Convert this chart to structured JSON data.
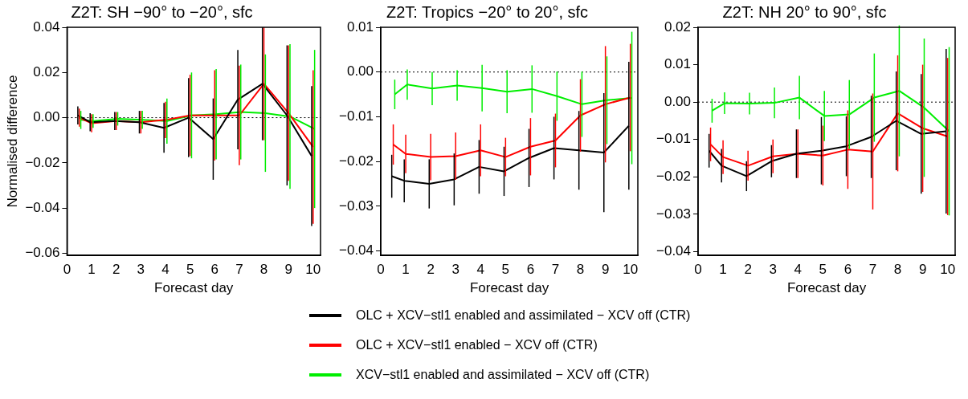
{
  "chart_data": [
    {
      "type": "line",
      "title": "Z2T: SH −90° to −20°, sfc",
      "xlabel": "Forecast day",
      "ylabel": "Normalised difference",
      "x": [
        0.5,
        1,
        2,
        3,
        4,
        5,
        6,
        7,
        8,
        9,
        10
      ],
      "xlim": [
        0,
        10.3
      ],
      "xticks": [
        0,
        1,
        2,
        3,
        4,
        5,
        6,
        7,
        8,
        9,
        10
      ],
      "ylim": [
        -0.061,
        0.04
      ],
      "yticks": [
        {
          "value": -0.06,
          "label": "−0.06"
        },
        {
          "value": -0.04,
          "label": "−0.04"
        },
        {
          "value": -0.02,
          "label": "−0.02"
        },
        {
          "value": 0,
          "label": "0.00"
        },
        {
          "value": 0.02,
          "label": "0.02"
        },
        {
          "value": 0.04,
          "label": "0.04"
        }
      ],
      "grid": false,
      "legend": "bottom",
      "marker": "none",
      "line_style": "solid",
      "ref_lines": [
        {
          "axis": "y",
          "value": 0,
          "color": "#000000",
          "line_style": "dotted"
        }
      ],
      "series": [
        {
          "name": "OLC + XCV−stl1 enabled and assimilated − XCV off (CTR)",
          "color": "#000000",
          "x": [
            0.44,
            0.94,
            1.94,
            2.94,
            3.94,
            4.94,
            5.94,
            6.94,
            7.94,
            8.94,
            9.94
          ],
          "values": [
            0.001,
            -0.002,
            -0.0015,
            -0.002,
            -0.0045,
            0,
            -0.0095,
            0.008,
            0.015,
            0.001,
            -0.017
          ],
          "errors": [
            0.004,
            0.004,
            0.004,
            0.005,
            0.011,
            0.0175,
            0.018,
            0.022,
            0.025,
            0.031,
            0.031
          ]
        },
        {
          "name": "OLC + XCV−stl1 enabled − XCV off (CTR)",
          "color": "#ff0000",
          "values": [
            0,
            -0.0025,
            -0.0015,
            -0.002,
            -0.001,
            0.001,
            0.001,
            0.001,
            0.015,
            0.002,
            -0.013
          ],
          "errors": [
            0.004,
            0.004,
            0.004,
            0.005,
            0.008,
            0.018,
            0.02,
            0.022,
            0.025,
            0.03,
            0.034
          ]
        },
        {
          "name": "XCV−stl1 enabled and assimilated − XCV off (CTR)",
          "color": "#00ee00",
          "x": [
            0.56,
            1.06,
            2.06,
            3.06,
            4.06,
            5.06,
            6.06,
            7.06,
            8.06,
            9.06,
            10.06
          ],
          "values": [
            -0.001,
            -0.0015,
            -0.0005,
            -0.001,
            -0.0015,
            0.001,
            0.0015,
            0.0025,
            0.002,
            0.0005,
            -0.005
          ],
          "errors": [
            0.004,
            0.003,
            0.003,
            0.004,
            0.01,
            0.019,
            0.02,
            0.021,
            0.026,
            0.032,
            0.035
          ]
        }
      ]
    },
    {
      "type": "line",
      "title": "Z2T: Tropics −20° to 20°, sfc",
      "xlabel": "Forecast day",
      "x": [
        0.5,
        1,
        2,
        3,
        4,
        5,
        6,
        7,
        8,
        9,
        10
      ],
      "xlim": [
        0,
        10.3
      ],
      "xticks": [
        0,
        1,
        2,
        3,
        4,
        5,
        6,
        7,
        8,
        9,
        10
      ],
      "ylim": [
        -0.041,
        0.01
      ],
      "yticks": [
        {
          "value": -0.04,
          "label": "−0.04"
        },
        {
          "value": -0.03,
          "label": "−0.03"
        },
        {
          "value": -0.02,
          "label": "−0.02"
        },
        {
          "value": -0.01,
          "label": "−0.01"
        },
        {
          "value": 0,
          "label": "0.00"
        },
        {
          "value": 0.01,
          "label": "0.01"
        }
      ],
      "grid": false,
      "marker": "none",
      "line_style": "solid",
      "ref_lines": [
        {
          "axis": "y",
          "value": 0,
          "color": "#000000",
          "line_style": "dotted"
        }
      ],
      "series": [
        {
          "color": "#000000",
          "x": [
            0.44,
            0.94,
            1.94,
            2.94,
            3.94,
            4.94,
            5.94,
            6.94,
            7.94,
            8.94,
            9.94
          ],
          "values": [
            -0.0233,
            -0.0243,
            -0.025,
            -0.024,
            -0.0212,
            -0.0222,
            -0.0192,
            -0.017,
            -0.0175,
            -0.018,
            -0.012
          ],
          "errors": [
            0.0048,
            0.0048,
            0.0055,
            0.0058,
            0.006,
            0.0055,
            0.0065,
            0.007,
            0.0088,
            0.0133,
            0.0143
          ]
        },
        {
          "color": "#ff0000",
          "values": [
            -0.0162,
            -0.0183,
            -0.019,
            -0.0188,
            -0.0175,
            -0.019,
            -0.0167,
            -0.0153,
            -0.0097,
            -0.0072,
            -0.0057
          ],
          "errors": [
            0.0045,
            0.0043,
            0.0052,
            0.0053,
            0.0058,
            0.0043,
            0.0064,
            0.006,
            0.0081,
            0.013,
            0.012
          ]
        },
        {
          "color": "#00ee00",
          "x": [
            0.56,
            1.06,
            2.06,
            3.06,
            4.06,
            5.06,
            6.06,
            7.06,
            8.06,
            9.06,
            10.06
          ],
          "values": [
            -0.005,
            -0.0028,
            -0.0037,
            -0.003,
            -0.0036,
            -0.0044,
            -0.0038,
            -0.0054,
            -0.0072,
            -0.0063,
            -0.0058
          ],
          "errors": [
            0.0033,
            0.0034,
            0.0037,
            0.0034,
            0.0052,
            0.0048,
            0.0053,
            0.0055,
            0.0073,
            0.0098,
            0.0148
          ]
        }
      ]
    },
    {
      "type": "line",
      "title": "Z2T: NH 20° to 90°, sfc",
      "xlabel": "Forecast day",
      "x": [
        0.5,
        1,
        2,
        3,
        4,
        5,
        6,
        7,
        8,
        9,
        10
      ],
      "xlim": [
        0,
        10.3
      ],
      "xticks": [
        0,
        1,
        2,
        3,
        4,
        5,
        6,
        7,
        8,
        9,
        10
      ],
      "ylim": [
        -0.041,
        0.02
      ],
      "yticks": [
        {
          "value": -0.04,
          "label": "−0.04"
        },
        {
          "value": -0.03,
          "label": "−0.03"
        },
        {
          "value": -0.02,
          "label": "−0.02"
        },
        {
          "value": -0.01,
          "label": "−0.01"
        },
        {
          "value": 0,
          "label": "0.00"
        },
        {
          "value": 0.01,
          "label": "0.01"
        },
        {
          "value": 0.02,
          "label": "0.02"
        }
      ],
      "grid": false,
      "marker": "none",
      "line_style": "solid",
      "ref_lines": [
        {
          "axis": "y",
          "value": 0,
          "color": "#000000",
          "line_style": "dotted"
        }
      ],
      "series": [
        {
          "color": "#000000",
          "x": [
            0.44,
            0.94,
            1.94,
            2.94,
            3.94,
            4.94,
            5.94,
            6.94,
            7.94,
            8.94,
            9.94
          ],
          "values": [
            -0.013,
            -0.017,
            -0.0198,
            -0.0158,
            -0.0138,
            -0.013,
            -0.0118,
            -0.0093,
            -0.005,
            -0.0085,
            -0.0078
          ],
          "errors": [
            0.0045,
            0.0045,
            0.004,
            0.0043,
            0.0065,
            0.009,
            0.008,
            0.011,
            0.0132,
            0.016,
            0.022
          ]
        },
        {
          "color": "#ff0000",
          "values": [
            -0.0113,
            -0.0147,
            -0.017,
            -0.0145,
            -0.0138,
            -0.0143,
            -0.0127,
            -0.0132,
            -0.003,
            -0.007,
            -0.0092
          ],
          "errors": [
            0.0045,
            0.0045,
            0.004,
            0.0045,
            0.0065,
            0.008,
            0.0105,
            0.0155,
            0.0155,
            0.017,
            0.021
          ]
        },
        {
          "color": "#00ee00",
          "x": [
            0.56,
            1.06,
            2.06,
            3.06,
            4.06,
            5.06,
            6.06,
            7.06,
            8.06,
            9.06,
            10.06
          ],
          "values": [
            -0.0023,
            -0.0003,
            -0.0004,
            -0.0002,
            0.0012,
            -0.0037,
            -0.0033,
            0.0012,
            0.003,
            -0.0015,
            -0.0078
          ],
          "errors": [
            0.0032,
            0.0029,
            0.0029,
            0.0041,
            0.0058,
            0.0067,
            0.0092,
            0.0118,
            0.0175,
            0.0185,
            0.0225
          ]
        }
      ]
    }
  ]
}
